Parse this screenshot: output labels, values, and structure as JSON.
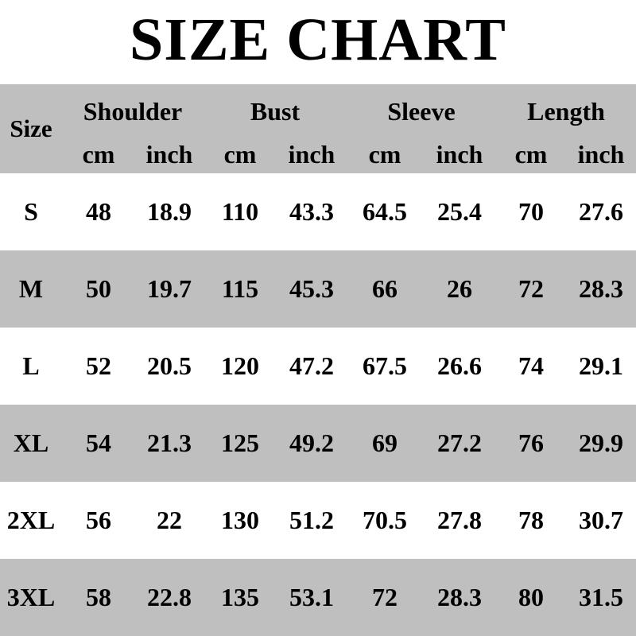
{
  "title": "SIZE CHART",
  "header": {
    "size_label": "Size",
    "groups": [
      "Shoulder",
      "Bust",
      "Sleeve",
      "Length"
    ],
    "units": [
      "cm",
      "inch",
      "cm",
      "inch",
      "cm",
      "inch",
      "cm",
      "inch"
    ]
  },
  "colors": {
    "band": "#bfbfbf",
    "background": "#ffffff",
    "text": "#000000"
  },
  "rows": [
    {
      "size": "S",
      "values": [
        "48",
        "18.9",
        "110",
        "43.3",
        "64.5",
        "25.4",
        "70",
        "27.6"
      ]
    },
    {
      "size": "M",
      "values": [
        "50",
        "19.7",
        "115",
        "45.3",
        "66",
        "26",
        "72",
        "28.3"
      ]
    },
    {
      "size": "L",
      "values": [
        "52",
        "20.5",
        "120",
        "47.2",
        "67.5",
        "26.6",
        "74",
        "29.1"
      ]
    },
    {
      "size": "XL",
      "values": [
        "54",
        "21.3",
        "125",
        "49.2",
        "69",
        "27.2",
        "76",
        "29.9"
      ]
    },
    {
      "size": "2XL",
      "values": [
        "56",
        "22",
        "130",
        "51.2",
        "70.5",
        "27.8",
        "78",
        "30.7"
      ]
    },
    {
      "size": "3XL",
      "values": [
        "58",
        "22.8",
        "135",
        "53.1",
        "72",
        "28.3",
        "80",
        "31.5"
      ]
    }
  ]
}
